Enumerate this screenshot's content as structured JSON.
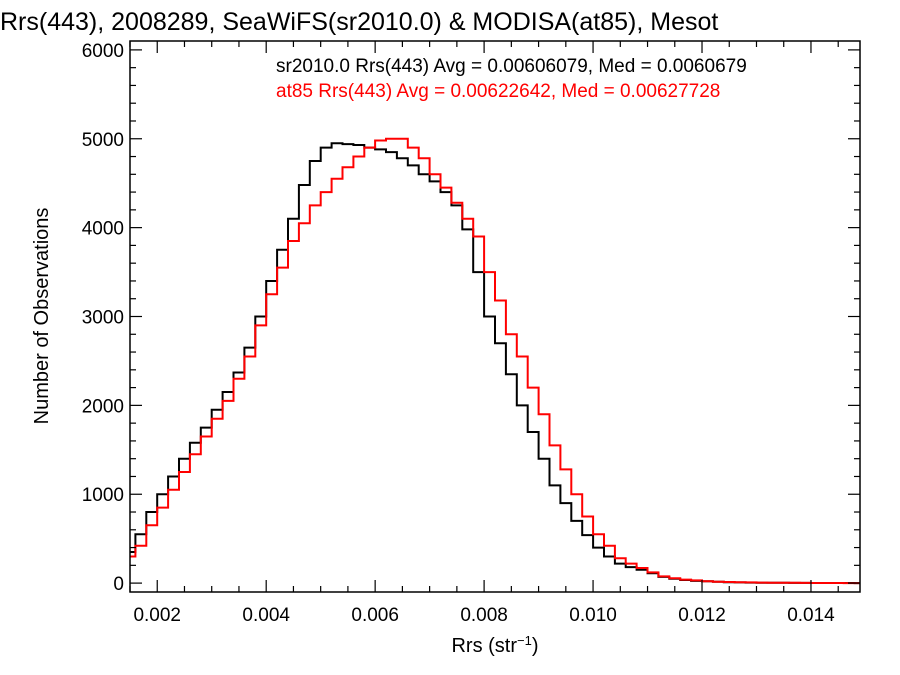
{
  "chart_data": {
    "type": "line",
    "title": "Rrs(443), 2008289, SeaWiFS(sr2010.0) & MODISA(at85), Mesot",
    "xlabel": "Rrs (str",
    "xlabel_superscript": "−1",
    "xlabel_close": ")",
    "ylabel": "Number of Observations",
    "xlim": [
      0.0015,
      0.0149
    ],
    "ylim": [
      -100,
      6100
    ],
    "x_ticks": [
      "0.002",
      "0.004",
      "0.006",
      "0.008",
      "0.010",
      "0.012",
      "0.014"
    ],
    "x_tick_values": [
      0.002,
      0.004,
      0.006,
      0.008,
      0.01,
      0.012,
      0.014
    ],
    "y_ticks": [
      "0",
      "1000",
      "2000",
      "3000",
      "4000",
      "5000",
      "6000"
    ],
    "y_tick_values": [
      0,
      1000,
      2000,
      3000,
      4000,
      5000,
      6000
    ],
    "grid": false,
    "legend_position": "top-right",
    "step": true,
    "series": [
      {
        "name": "sr2010.0 Rrs(443) Avg = 0.00606079, Med = 0.0060679",
        "color": "#000000",
        "x": [
          0.0015,
          0.0016,
          0.0018,
          0.002,
          0.0022,
          0.0024,
          0.0026,
          0.0028,
          0.003,
          0.0032,
          0.0034,
          0.0036,
          0.0038,
          0.004,
          0.0042,
          0.0044,
          0.0046,
          0.0048,
          0.005,
          0.0052,
          0.0054,
          0.0056,
          0.0058,
          0.006,
          0.0062,
          0.0064,
          0.0066,
          0.0068,
          0.007,
          0.0072,
          0.0074,
          0.0076,
          0.0078,
          0.008,
          0.0082,
          0.0084,
          0.0086,
          0.0088,
          0.009,
          0.0092,
          0.0094,
          0.0096,
          0.0098,
          0.01,
          0.0102,
          0.0104,
          0.0106,
          0.0108,
          0.011,
          0.0112,
          0.0114,
          0.0116,
          0.0118,
          0.012,
          0.0122,
          0.0124,
          0.0126,
          0.0128,
          0.013,
          0.0132,
          0.0134,
          0.0136,
          0.0138,
          0.014,
          0.0142,
          0.0144,
          0.0146,
          0.0148,
          0.0149
        ],
        "y": [
          350,
          550,
          800,
          1000,
          1200,
          1400,
          1580,
          1750,
          1950,
          2150,
          2370,
          2650,
          3000,
          3400,
          3750,
          4100,
          4480,
          4750,
          4900,
          4950,
          4940,
          4930,
          4900,
          4880,
          4850,
          4780,
          4700,
          4600,
          4520,
          4400,
          4250,
          3980,
          3500,
          3000,
          2700,
          2350,
          2000,
          1700,
          1400,
          1100,
          900,
          700,
          540,
          400,
          300,
          220,
          180,
          150,
          110,
          70,
          50,
          35,
          25,
          20,
          15,
          10,
          8,
          6,
          5,
          4,
          3,
          2,
          2,
          1,
          1,
          1,
          1,
          0,
          0
        ]
      },
      {
        "name": "at85 Rrs(443) Avg = 0.00622642, Med = 0.00627728",
        "color": "#ff0000",
        "x": [
          0.0015,
          0.0016,
          0.0018,
          0.002,
          0.0022,
          0.0024,
          0.0026,
          0.0028,
          0.003,
          0.0032,
          0.0034,
          0.0036,
          0.0038,
          0.004,
          0.0042,
          0.0044,
          0.0046,
          0.0048,
          0.005,
          0.0052,
          0.0054,
          0.0056,
          0.0058,
          0.006,
          0.0062,
          0.0064,
          0.0066,
          0.0068,
          0.007,
          0.0072,
          0.0074,
          0.0076,
          0.0078,
          0.008,
          0.0082,
          0.0084,
          0.0086,
          0.0088,
          0.009,
          0.0092,
          0.0094,
          0.0096,
          0.0098,
          0.01,
          0.0102,
          0.0104,
          0.0106,
          0.0108,
          0.011,
          0.0112,
          0.0114,
          0.0116,
          0.0118,
          0.012,
          0.0122,
          0.0124,
          0.0126,
          0.0128,
          0.013,
          0.0132,
          0.0134,
          0.0136,
          0.0138,
          0.014,
          0.0142,
          0.0144,
          0.0146,
          0.0148,
          0.0149
        ],
        "y": [
          300,
          420,
          650,
          850,
          1050,
          1250,
          1450,
          1650,
          1850,
          2050,
          2300,
          2550,
          2900,
          3250,
          3550,
          3850,
          4050,
          4250,
          4400,
          4550,
          4680,
          4800,
          4900,
          4980,
          5000,
          5000,
          4900,
          4780,
          4600,
          4450,
          4280,
          4100,
          3900,
          3500,
          3180,
          2800,
          2550,
          2200,
          1900,
          1550,
          1280,
          1000,
          750,
          550,
          420,
          280,
          220,
          170,
          120,
          75,
          55,
          40,
          30,
          22,
          16,
          12,
          10,
          8,
          6,
          5,
          4,
          3,
          2,
          1,
          1,
          1,
          0,
          0,
          0
        ]
      }
    ]
  }
}
